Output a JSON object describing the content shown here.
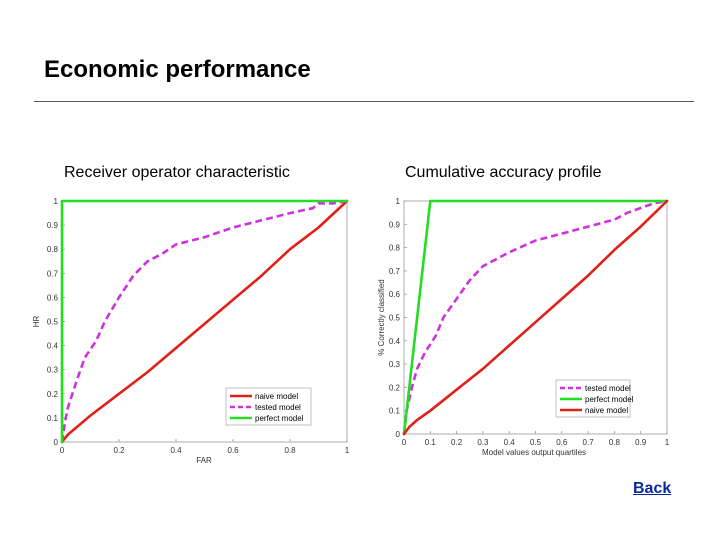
{
  "slide": {
    "title": "Economic performance",
    "back_label": "Back"
  },
  "colors": {
    "naive": "#e0201a",
    "tested": "#cc33dd",
    "perfect": "#22dd22"
  },
  "chart_data": [
    {
      "type": "line",
      "title": "Receiver operator characteristic",
      "xlabel": "FAR",
      "ylabel": "HR",
      "xlim": [
        0,
        1
      ],
      "ylim": [
        0,
        1
      ],
      "xticks": [
        0,
        0.2,
        0.4,
        0.6,
        0.8,
        1
      ],
      "xtick_labels": [
        "0",
        "0.2",
        "0.4",
        "0.6",
        "0.8",
        "1"
      ],
      "yticks": [
        0,
        0.1,
        0.2,
        0.3,
        0.4,
        0.5,
        0.6,
        0.7,
        0.8,
        0.9,
        1
      ],
      "ytick_labels": [
        "0",
        "0.1",
        "0.2",
        "0.3",
        "0.4",
        "0.5",
        "0.6",
        "0.7",
        "0.8",
        "0.9",
        "1"
      ],
      "legend_position": "bottom-right",
      "series": [
        {
          "name": "naive model",
          "style": "solid",
          "color_key": "naive",
          "x": [
            0,
            0.02,
            0.05,
            0.1,
            0.2,
            0.3,
            0.4,
            0.5,
            0.6,
            0.7,
            0.8,
            0.9,
            1
          ],
          "y": [
            0,
            0.03,
            0.06,
            0.11,
            0.2,
            0.29,
            0.39,
            0.49,
            0.59,
            0.69,
            0.8,
            0.89,
            1
          ]
        },
        {
          "name": "tested model",
          "style": "dashed",
          "color_key": "tested",
          "x": [
            0,
            0.01,
            0.02,
            0.05,
            0.08,
            0.12,
            0.15,
            0.2,
            0.25,
            0.3,
            0.35,
            0.4,
            0.5,
            0.6,
            0.7,
            0.8,
            0.88,
            0.9,
            0.95,
            1
          ],
          "y": [
            0,
            0.08,
            0.14,
            0.25,
            0.35,
            0.42,
            0.5,
            0.6,
            0.69,
            0.75,
            0.78,
            0.82,
            0.85,
            0.89,
            0.92,
            0.95,
            0.97,
            0.99,
            0.99,
            1
          ]
        },
        {
          "name": "perfect model",
          "style": "solid",
          "color_key": "perfect",
          "x": [
            0,
            0,
            1
          ],
          "y": [
            0,
            1,
            1
          ]
        }
      ]
    },
    {
      "type": "line",
      "title": "Cumulative accuracy profile",
      "xlabel": "Model values output quartiles",
      "ylabel": "% Correctly classified",
      "xlim": [
        0,
        1
      ],
      "ylim": [
        0,
        1
      ],
      "xticks": [
        0,
        0.1,
        0.2,
        0.3,
        0.4,
        0.5,
        0.6,
        0.7,
        0.8,
        0.9,
        1
      ],
      "xtick_labels": [
        "0",
        "0.1",
        "0.2",
        "0.3",
        "0.4",
        "0.5",
        "0.6",
        "0.7",
        "0.8",
        "0.9",
        "1"
      ],
      "yticks": [
        0,
        0.1,
        0.2,
        0.3,
        0.4,
        0.5,
        0.6,
        0.7,
        0.8,
        0.9,
        1
      ],
      "ytick_labels": [
        "0",
        "0.1",
        "0.2",
        "0.3",
        "0.4",
        "0.5",
        "0.6",
        "0.7",
        "0.8",
        "0.9",
        "1"
      ],
      "legend_position": "bottom-right",
      "series": [
        {
          "name": "tested model",
          "style": "dashed",
          "color_key": "tested",
          "x": [
            0,
            0.01,
            0.03,
            0.05,
            0.08,
            0.12,
            0.15,
            0.2,
            0.25,
            0.3,
            0.35,
            0.4,
            0.5,
            0.6,
            0.7,
            0.8,
            0.85,
            0.9,
            0.95,
            1
          ],
          "y": [
            0,
            0.1,
            0.2,
            0.28,
            0.35,
            0.42,
            0.5,
            0.58,
            0.66,
            0.72,
            0.75,
            0.78,
            0.83,
            0.86,
            0.89,
            0.92,
            0.95,
            0.97,
            0.99,
            1
          ]
        },
        {
          "name": "perfect model",
          "style": "solid",
          "color_key": "perfect",
          "x": [
            0,
            0.1,
            1
          ],
          "y": [
            0,
            1,
            1
          ]
        },
        {
          "name": "naive model",
          "style": "solid",
          "color_key": "naive",
          "x": [
            0,
            0.02,
            0.05,
            0.1,
            0.2,
            0.3,
            0.4,
            0.5,
            0.6,
            0.7,
            0.8,
            0.9,
            1
          ],
          "y": [
            0,
            0.03,
            0.06,
            0.1,
            0.19,
            0.28,
            0.38,
            0.48,
            0.58,
            0.68,
            0.79,
            0.89,
            1
          ]
        }
      ]
    }
  ]
}
